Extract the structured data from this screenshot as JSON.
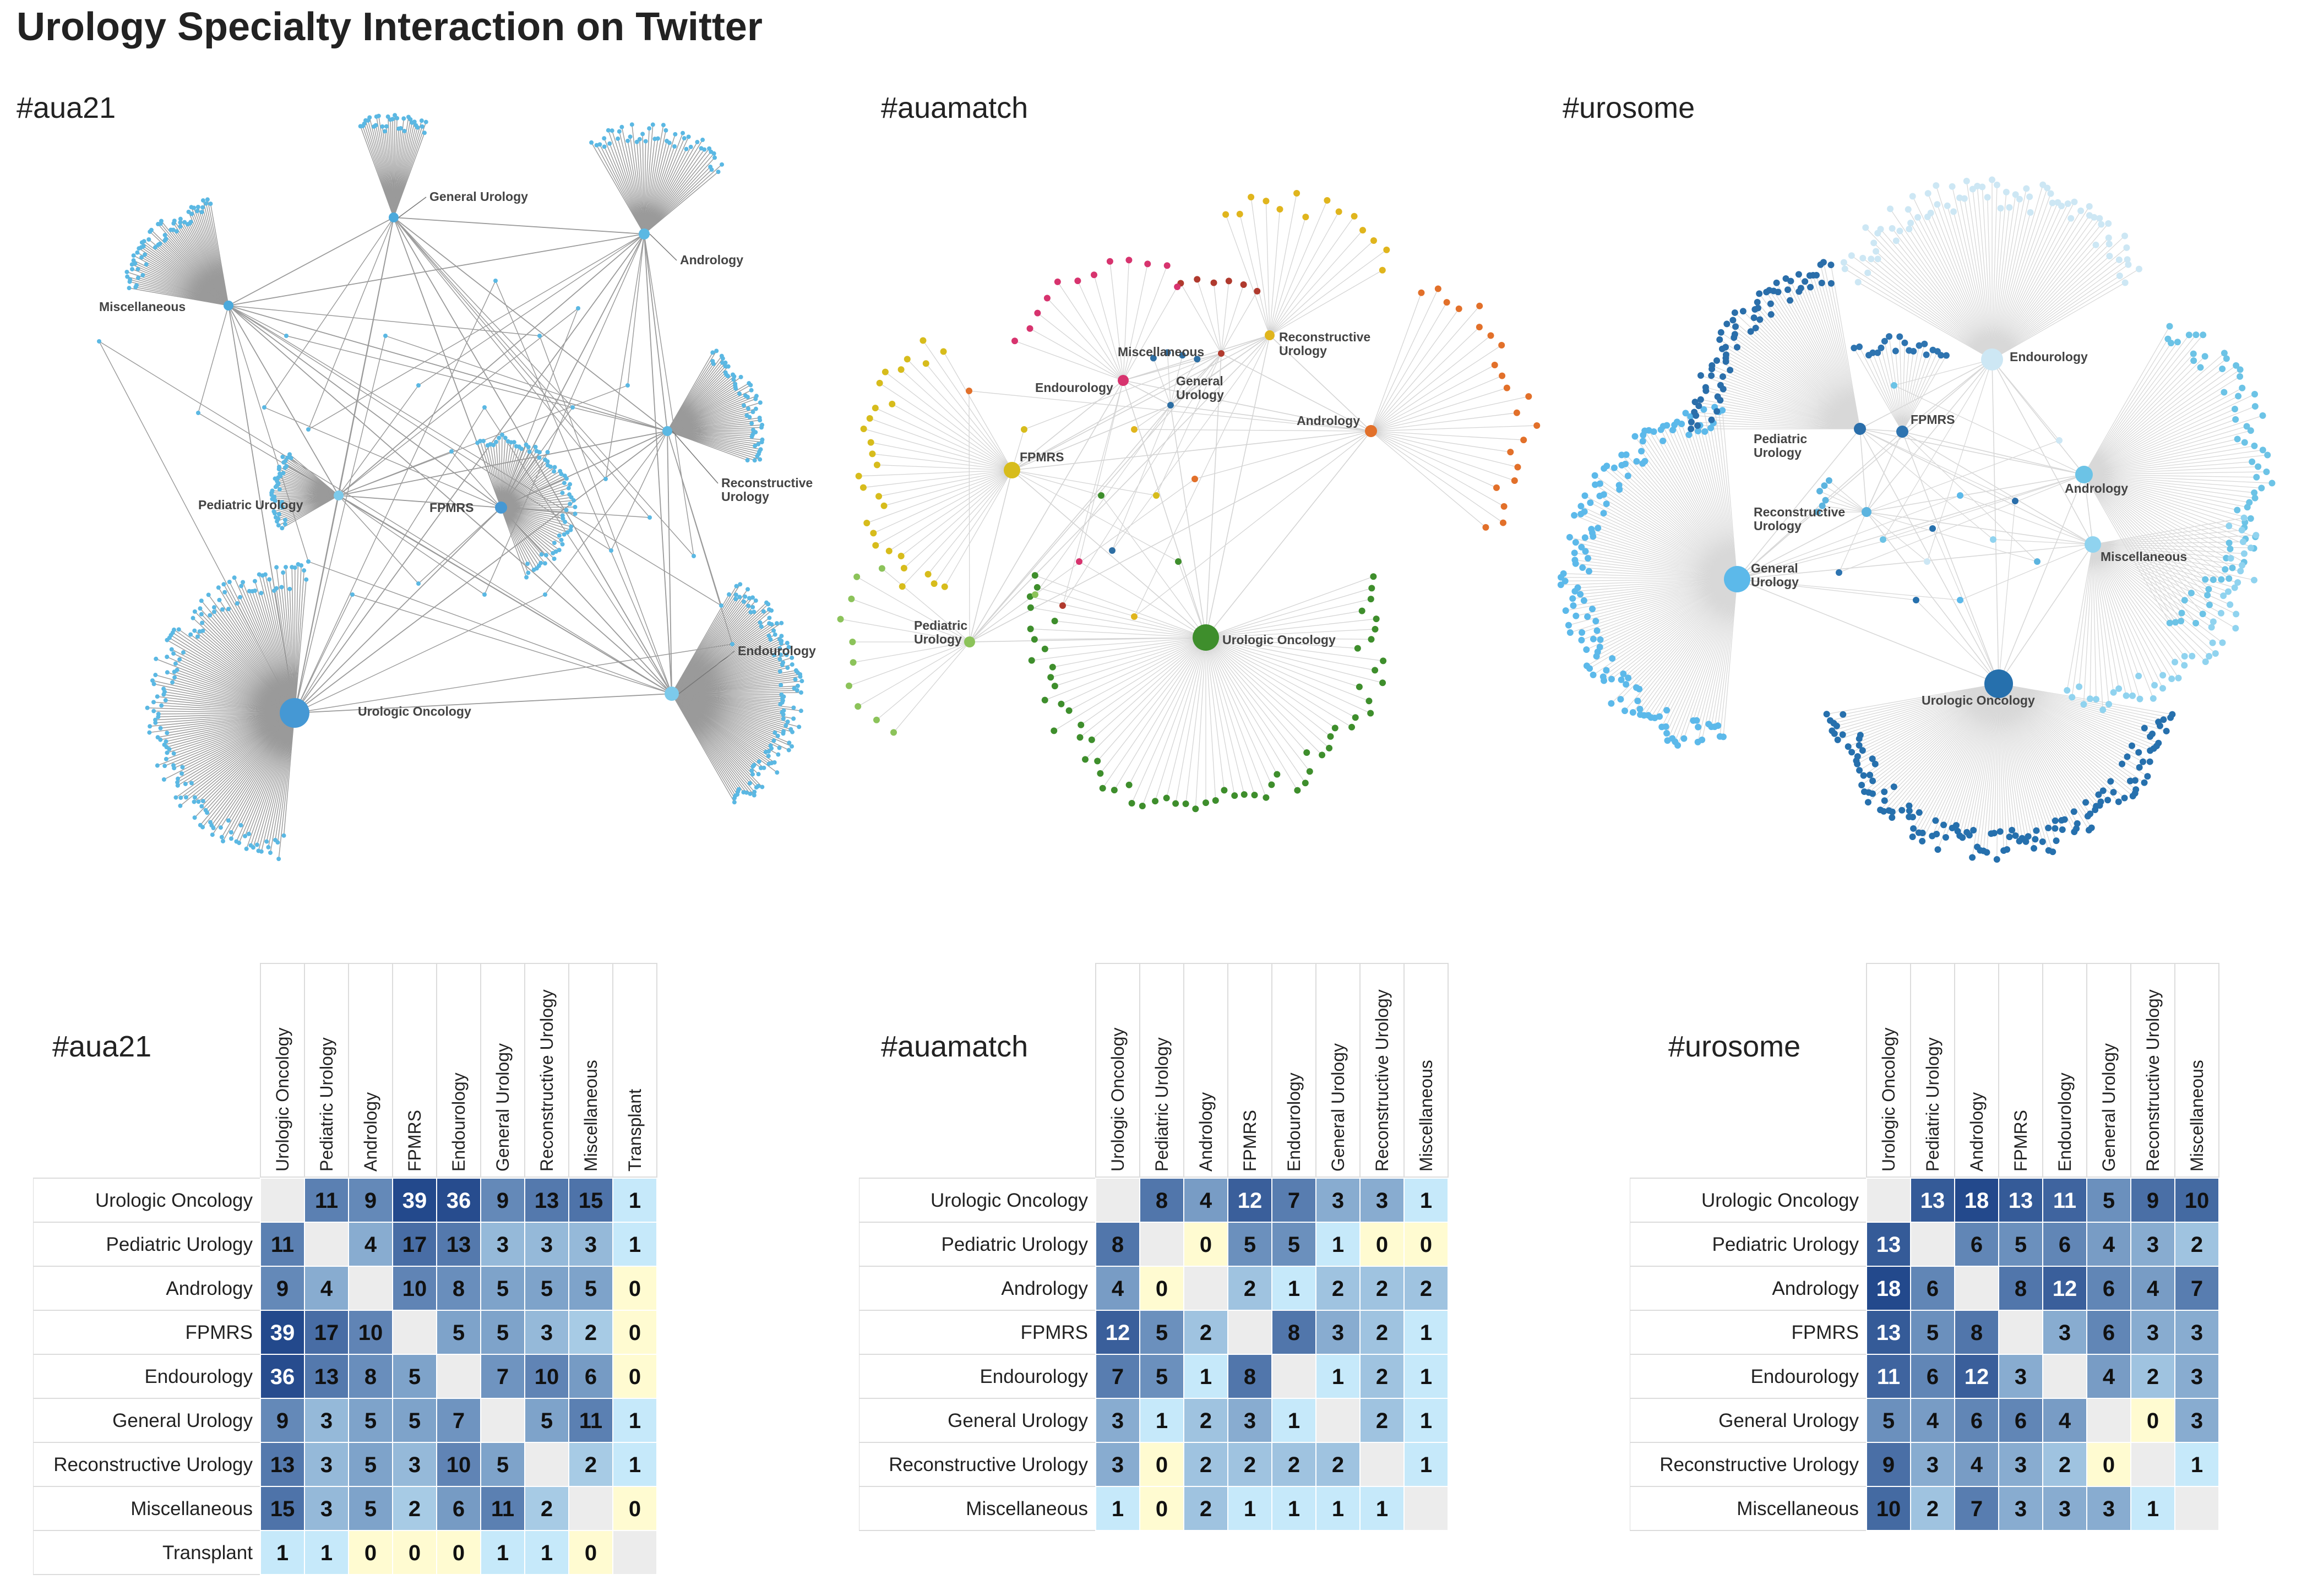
{
  "page": {
    "title": "Urology Specialty Interaction on Twitter"
  },
  "colors": {
    "aua21_node": "#5bb8e3",
    "aua21_edge": "#9a9a9a",
    "auamatch_edge": "#d4d4d4",
    "urosome_edge": "#d8d8d8",
    "heat_zero": "#fffbd1",
    "heat_diag": "#ececec"
  },
  "networks": [
    {
      "id": "aua21",
      "title": "#aua21",
      "hubs": [
        {
          "label": "Urologic Oncology",
          "color": "#4598d4"
        },
        {
          "label": "Endourology",
          "color": "#7ccaeb"
        },
        {
          "label": "General Urology",
          "color": "#4aa9dc"
        },
        {
          "label": "Andrology",
          "color": "#5bb8e3"
        },
        {
          "label": "Miscellaneous",
          "color": "#4aa9dc"
        },
        {
          "label": "Reconstructive Urology",
          "color": "#5bb8e3"
        },
        {
          "label": "Pediatric Urology",
          "color": "#7ccaeb"
        },
        {
          "label": "FPMRS",
          "color": "#4598d4"
        }
      ]
    },
    {
      "id": "auamatch",
      "title": "#auamatch",
      "hubs": [
        {
          "label": "Urologic Oncology",
          "color": "#3e8e2c"
        },
        {
          "label": "FPMRS",
          "color": "#d7bc1c"
        },
        {
          "label": "Andrology",
          "color": "#e2702a"
        },
        {
          "label": "Reconstructive Urology",
          "color": "#e0b51d"
        },
        {
          "label": "Miscellaneous",
          "color": "#b03a2e"
        },
        {
          "label": "Endourology",
          "color": "#d7336e"
        },
        {
          "label": "General Urology",
          "color": "#2d6ea3"
        },
        {
          "label": "Pediatric Urology",
          "color": "#8cc35a"
        }
      ]
    },
    {
      "id": "urosome",
      "title": "#urosome",
      "hubs": [
        {
          "label": "Urologic Oncology",
          "color": "#2670ad"
        },
        {
          "label": "General Urology",
          "color": "#5cb9ea"
        },
        {
          "label": "Endourology",
          "color": "#cde7f4"
        },
        {
          "label": "Andrology",
          "color": "#6cc3e6"
        },
        {
          "label": "Miscellaneous",
          "color": "#90d3ef"
        },
        {
          "label": "Pediatric Urology",
          "color": "#2a6eaa"
        },
        {
          "label": "FPMRS",
          "color": "#2e74b0"
        },
        {
          "label": "Reconstructive Urology",
          "color": "#5cb4df"
        }
      ]
    }
  ],
  "chart_data": [
    {
      "type": "heatmap",
      "title": "#aua21",
      "rows": [
        "Urologic Oncology",
        "Pediatric Urology",
        "Andrology",
        "FPMRS",
        "Endourology",
        "General Urology",
        "Reconstructive Urology",
        "Miscellaneous",
        "Transplant"
      ],
      "columns": [
        "Urologic Oncology",
        "Pediatric Urology",
        "Andrology",
        "FPMRS",
        "Endourology",
        "General Urology",
        "Reconstructive Urology",
        "Miscellaneous",
        "Transplant"
      ],
      "values": [
        [
          null,
          11,
          9,
          39,
          36,
          9,
          13,
          15,
          1
        ],
        [
          11,
          null,
          4,
          17,
          13,
          3,
          3,
          3,
          1
        ],
        [
          9,
          4,
          null,
          10,
          8,
          5,
          5,
          5,
          0
        ],
        [
          39,
          17,
          10,
          null,
          5,
          5,
          3,
          2,
          0
        ],
        [
          36,
          13,
          8,
          5,
          null,
          7,
          10,
          6,
          0
        ],
        [
          9,
          3,
          5,
          5,
          7,
          null,
          5,
          11,
          1
        ],
        [
          13,
          3,
          5,
          3,
          10,
          5,
          null,
          2,
          1
        ],
        [
          15,
          3,
          5,
          2,
          6,
          11,
          2,
          null,
          0
        ],
        [
          1,
          1,
          0,
          0,
          0,
          1,
          1,
          0,
          null
        ]
      ]
    },
    {
      "type": "heatmap",
      "title": "#auamatch",
      "rows": [
        "Urologic Oncology",
        "Pediatric Urology",
        "Andrology",
        "FPMRS",
        "Endourology",
        "General Urology",
        "Reconstructive Urology",
        "Miscellaneous"
      ],
      "columns": [
        "Urologic Oncology",
        "Pediatric Urology",
        "Andrology",
        "FPMRS",
        "Endourology",
        "General Urology",
        "Reconstructive Urology",
        "Miscellaneous"
      ],
      "values": [
        [
          null,
          8,
          4,
          12,
          7,
          3,
          3,
          1
        ],
        [
          8,
          null,
          0,
          5,
          5,
          1,
          0,
          0
        ],
        [
          4,
          0,
          null,
          2,
          1,
          2,
          2,
          2
        ],
        [
          12,
          5,
          2,
          null,
          8,
          3,
          2,
          1
        ],
        [
          7,
          5,
          1,
          8,
          null,
          1,
          2,
          1
        ],
        [
          3,
          1,
          2,
          3,
          1,
          null,
          2,
          1
        ],
        [
          3,
          0,
          2,
          2,
          2,
          2,
          null,
          1
        ],
        [
          1,
          0,
          2,
          1,
          1,
          1,
          1,
          null
        ]
      ]
    },
    {
      "type": "heatmap",
      "title": "#urosome",
      "rows": [
        "Urologic Oncology",
        "Pediatric Urology",
        "Andrology",
        "FPMRS",
        "Endourology",
        "General Urology",
        "Reconstructive Urology",
        "Miscellaneous"
      ],
      "columns": [
        "Urologic Oncology",
        "Pediatric Urology",
        "Andrology",
        "FPMRS",
        "Endourology",
        "General Urology",
        "Reconstructive Urology",
        "Miscellaneous"
      ],
      "values": [
        [
          null,
          13,
          18,
          13,
          11,
          5,
          9,
          10
        ],
        [
          13,
          null,
          6,
          5,
          6,
          4,
          3,
          2
        ],
        [
          18,
          6,
          null,
          8,
          12,
          6,
          4,
          7
        ],
        [
          13,
          5,
          8,
          null,
          3,
          6,
          3,
          3
        ],
        [
          11,
          6,
          12,
          3,
          null,
          4,
          2,
          3
        ],
        [
          5,
          4,
          6,
          6,
          4,
          null,
          0,
          3
        ],
        [
          9,
          3,
          4,
          3,
          2,
          0,
          null,
          1
        ],
        [
          10,
          2,
          7,
          3,
          3,
          3,
          1,
          null
        ]
      ]
    }
  ]
}
